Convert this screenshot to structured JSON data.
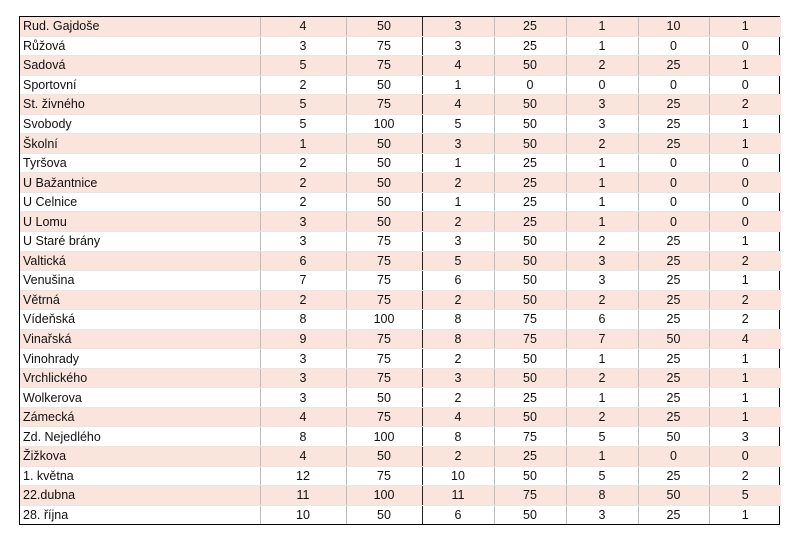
{
  "rows": [
    [
      "Rud. Gajdoše",
      "4",
      "50",
      "3",
      "25",
      "1",
      "10",
      "1"
    ],
    [
      "Růžová",
      "3",
      "75",
      "3",
      "25",
      "1",
      "0",
      "0"
    ],
    [
      "Sadová",
      "5",
      "75",
      "4",
      "50",
      "2",
      "25",
      "1"
    ],
    [
      "Sportovní",
      "2",
      "50",
      "1",
      "0",
      "0",
      "0",
      "0"
    ],
    [
      "St. živného",
      "5",
      "75",
      "4",
      "50",
      "3",
      "25",
      "2"
    ],
    [
      "Svobody",
      "5",
      "100",
      "5",
      "50",
      "3",
      "25",
      "1"
    ],
    [
      "Školní",
      "1",
      "50",
      "3",
      "50",
      "2",
      "25",
      "1"
    ],
    [
      "Tyršova",
      "2",
      "50",
      "1",
      "25",
      "1",
      "0",
      "0"
    ],
    [
      "U Bažantnice",
      "2",
      "50",
      "2",
      "25",
      "1",
      "0",
      "0"
    ],
    [
      "U Celnice",
      "2",
      "50",
      "1",
      "25",
      "1",
      "0",
      "0"
    ],
    [
      "U Lomu",
      "3",
      "50",
      "2",
      "25",
      "1",
      "0",
      "0"
    ],
    [
      "U Staré brány",
      "3",
      "75",
      "3",
      "50",
      "2",
      "25",
      "1"
    ],
    [
      "Valtická",
      "6",
      "75",
      "5",
      "50",
      "3",
      "25",
      "2"
    ],
    [
      "Venušina",
      "7",
      "75",
      "6",
      "50",
      "3",
      "25",
      "1"
    ],
    [
      "Větrná",
      "2",
      "75",
      "2",
      "50",
      "2",
      "25",
      "2"
    ],
    [
      "Vídeňská",
      "8",
      "100",
      "8",
      "75",
      "6",
      "25",
      "2"
    ],
    [
      "Vinařská",
      "9",
      "75",
      "8",
      "75",
      "7",
      "50",
      "4"
    ],
    [
      "Vinohrady",
      "3",
      "75",
      "2",
      "50",
      "1",
      "25",
      "1"
    ],
    [
      "Vrchlického",
      "3",
      "75",
      "3",
      "50",
      "2",
      "25",
      "1"
    ],
    [
      "Wolkerova",
      "3",
      "50",
      "2",
      "25",
      "1",
      "25",
      "1"
    ],
    [
      "Zámecká",
      "4",
      "75",
      "4",
      "50",
      "2",
      "25",
      "1"
    ],
    [
      "Zd. Nejedlého",
      "8",
      "100",
      "8",
      "75",
      "5",
      "50",
      "3"
    ],
    [
      "Žižkova",
      "4",
      "50",
      "2",
      "25",
      "1",
      "0",
      "0"
    ],
    [
      "1. května",
      "12",
      "75",
      "10",
      "50",
      "5",
      "25",
      "2"
    ],
    [
      "22.dubna",
      "11",
      "100",
      "11",
      "75",
      "8",
      "50",
      "5"
    ],
    [
      "28. října",
      "10",
      "50",
      "6",
      "50",
      "3",
      "25",
      "1"
    ]
  ],
  "colors": {
    "stripe": "#fbe4dc",
    "plain": "#ffffff",
    "text": "#111111",
    "grid": "#bcbcbc",
    "border": "#000000"
  }
}
